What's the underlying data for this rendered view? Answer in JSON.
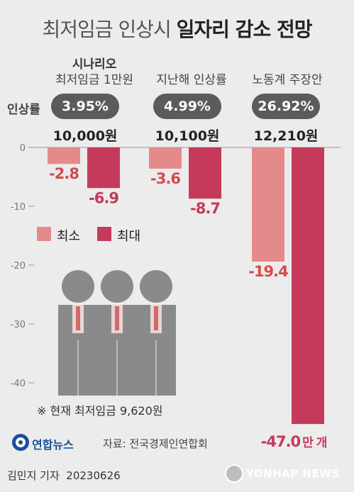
{
  "title": {
    "normal": "최저임금 인상시",
    "bold": "일자리 감소 전망"
  },
  "rate_label": "인상률",
  "scenarios": [
    {
      "header_top": "시나리오",
      "header": "최저임금 1만원",
      "rate": "3.95%",
      "wage": "10,000원"
    },
    {
      "header_top": "",
      "header": "지난해 인상률",
      "rate": "4.99%",
      "wage": "10,100원"
    },
    {
      "header_top": "",
      "header": "노동계 주장안",
      "rate": "26.92%",
      "wage": "12,210원"
    }
  ],
  "legend": {
    "min": "최소",
    "max": "최대"
  },
  "unit_suffix": "만 개",
  "note": "※ 현재 최저임금 9,620원",
  "logo_text": "연합뉴스",
  "source": "자료: 전국경제인연합회",
  "credit": "김민지 기자  20230626",
  "watermark": "YONHAP NEWS",
  "colors": {
    "min": "#e58a8a",
    "max": "#c53a5a",
    "axis": "#999999",
    "pill": "#5b5b5b",
    "people": "#8a8a8a"
  },
  "chart_data": {
    "type": "bar",
    "title": "최저임금 인상시 일자리 감소 전망",
    "categories": [
      "최저임금 1만원",
      "지난해 인상률",
      "노동계 주장안"
    ],
    "series": [
      {
        "name": "최소",
        "values": [
          -2.8,
          -3.6,
          -19.4
        ]
      },
      {
        "name": "최대",
        "values": [
          -6.9,
          -8.7,
          -47.0
        ]
      }
    ],
    "value_labels": [
      [
        "-2.8",
        "-3.6",
        "-19.4"
      ],
      [
        "-6.9",
        "-8.7",
        "-47.0"
      ]
    ],
    "ylim": [
      -47,
      0
    ],
    "yticks": [
      0,
      -10,
      -20,
      -30,
      -40
    ],
    "ytick_labels": [
      "0",
      "-10",
      "-20",
      "-30",
      "-40"
    ],
    "grid": false,
    "legend_position": "middle-left"
  }
}
